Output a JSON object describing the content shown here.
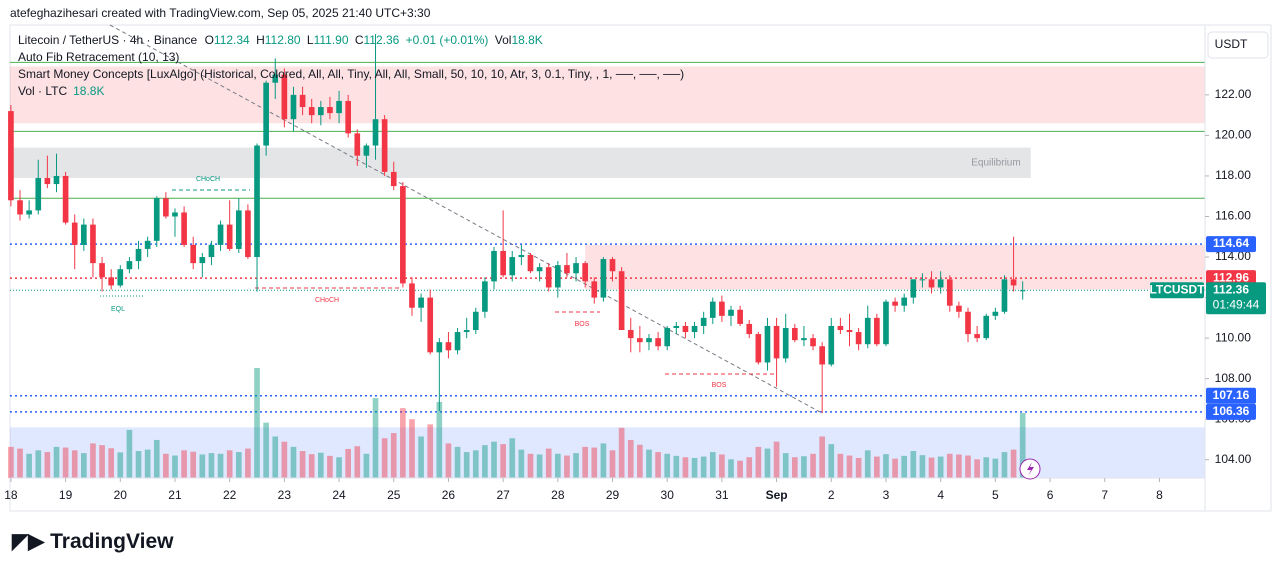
{
  "header": {
    "credit": "atefeghazihesari created with TradingView.com, Sep 05, 2025 21:40 UTC+3:30",
    "logo": "TradingView"
  },
  "chart_data": {
    "type": "candlestick",
    "symbol": "Litecoin / TetherUS · 4h · Binance",
    "ohlc": {
      "names": [
        "O",
        "H",
        "L",
        "C"
      ],
      "values": [
        112.34,
        112.8,
        111.9,
        112.36
      ],
      "value_labels": [
        "112.34",
        "112.80",
        "111.90",
        "112.36"
      ]
    },
    "change": "+0.01 (+0.01%)",
    "volume_label": "Vol",
    "volume_value": "18.8K",
    "indicators": [
      "Auto Fib Retracement (10, 13)",
      "Smart Money Concepts [LuxAlgo] (Historical, Colored, All, All, Tiny, All, All, Small, 50, 10, 10, Atr, 3, 0.1, Tiny, , 1, ──, ──, ──)"
    ],
    "volume_legend": {
      "name": "Vol · LTC",
      "value": "18.8K"
    },
    "currency": "USDT",
    "up_color": "#089981",
    "down_color": "#f23645",
    "x": [
      0,
      1,
      2,
      3,
      4,
      5,
      6,
      7,
      8,
      9,
      10,
      11,
      12,
      13,
      14,
      15,
      16,
      17,
      18,
      19,
      20,
      21,
      22,
      23,
      24,
      25,
      26,
      27,
      28,
      29,
      30,
      31,
      32,
      33,
      34,
      35,
      36,
      37,
      38,
      39,
      40,
      41,
      42,
      43,
      44,
      45,
      46,
      47,
      48,
      49,
      50,
      51,
      52,
      53,
      54,
      55,
      56,
      57,
      58,
      59,
      60,
      61,
      62,
      63,
      64,
      65,
      66,
      67,
      68,
      69,
      70,
      71,
      72,
      73,
      74,
      75,
      76,
      77,
      78,
      79,
      80,
      81,
      82,
      83,
      84,
      85,
      86,
      87,
      88,
      89,
      90,
      91,
      92,
      93,
      94,
      95,
      96,
      97,
      98,
      99,
      100,
      101,
      102,
      103,
      104,
      105,
      106,
      107,
      108,
      109,
      110,
      111
    ],
    "open": [
      121.2,
      116.8,
      116.1,
      116.3,
      117.9,
      117.6,
      118.0,
      115.7,
      114.6,
      115.6,
      113.7,
      113.0,
      112.6,
      113.4,
      113.8,
      114.4,
      114.8,
      116.9,
      116.0,
      116.2,
      114.6,
      113.7,
      114.0,
      114.6,
      115.6,
      114.4,
      116.3,
      114.0,
      119.5,
      122.6,
      123.0,
      120.8,
      122.0,
      121.4,
      121.0,
      121.4,
      121.1,
      121.7,
      120.1,
      119.0,
      119.5,
      120.8,
      118.2,
      117.5,
      112.7,
      111.5,
      112.0,
      109.3,
      109.8,
      109.4,
      110.3,
      110.4,
      111.3,
      112.8,
      114.3,
      113.1,
      114.0,
      114.1,
      113.3,
      113.5,
      112.5,
      113.6,
      113.2,
      113.7,
      112.8,
      112.0,
      113.9,
      113.3,
      110.4,
      110.0,
      109.8,
      110.0,
      109.6,
      110.5,
      110.6,
      110.3,
      110.6,
      111.0,
      111.8,
      111.1,
      111.4,
      110.7,
      110.2,
      108.8,
      110.6,
      109.0,
      110.5,
      109.9,
      110.0,
      109.6,
      108.7,
      110.6,
      110.4,
      110.3,
      109.7,
      111.0,
      109.7,
      111.8,
      111.6,
      112.0,
      112.9,
      112.9,
      112.5,
      112.9,
      111.6,
      111.3,
      110.2,
      110.0,
      111.1,
      111.3,
      112.9,
      112.34
    ],
    "high": [
      121.5,
      117.3,
      116.8,
      118.8,
      119.0,
      119.1,
      118.2,
      116.1,
      115.9,
      115.9,
      114.0,
      113.4,
      113.6,
      114.0,
      114.8,
      115.0,
      117.0,
      117.2,
      116.4,
      116.5,
      115.0,
      114.2,
      114.8,
      115.8,
      116.8,
      116.9,
      116.6,
      119.6,
      122.7,
      123.8,
      123.3,
      122.4,
      122.4,
      121.8,
      121.7,
      121.9,
      122.2,
      122.0,
      120.3,
      119.6,
      125.0,
      121.0,
      118.7,
      117.7,
      113.0,
      112.2,
      112.4,
      110.0,
      110.3,
      110.5,
      111.0,
      111.5,
      113.0,
      114.5,
      116.3,
      114.3,
      114.6,
      114.2,
      113.7,
      113.7,
      113.8,
      114.2,
      114.0,
      113.8,
      113.0,
      114.0,
      114.0,
      113.5,
      111.0,
      110.6,
      110.2,
      110.3,
      110.6,
      110.8,
      110.8,
      110.8,
      111.3,
      112.0,
      112.1,
      111.6,
      111.6,
      110.9,
      110.3,
      111.0,
      111.0,
      111.2,
      110.7,
      110.6,
      110.2,
      109.8,
      111.0,
      111.0,
      111.2,
      110.5,
      111.6,
      111.2,
      111.9,
      112.0,
      112.2,
      112.9,
      113.2,
      113.3,
      113.3,
      113.1,
      111.8,
      111.5,
      110.6,
      111.2,
      111.5,
      113.1,
      115.0,
      112.8
    ],
    "low": [
      116.5,
      115.8,
      115.9,
      116.1,
      117.4,
      117.2,
      115.6,
      113.4,
      114.3,
      113.0,
      112.3,
      112.4,
      112.5,
      113.2,
      113.4,
      114.0,
      114.5,
      115.9,
      115.0,
      114.5,
      113.4,
      113.0,
      113.6,
      114.3,
      114.3,
      114.2,
      113.9,
      112.3,
      119.0,
      121.8,
      120.4,
      120.2,
      121.0,
      120.6,
      120.5,
      120.8,
      120.6,
      119.9,
      118.5,
      118.4,
      118.8,
      118.0,
      117.3,
      112.5,
      111.1,
      110.8,
      109.2,
      106.4,
      109.0,
      109.2,
      110.0,
      110.2,
      111.0,
      112.4,
      113.0,
      112.8,
      113.6,
      113.2,
      112.8,
      112.3,
      112.0,
      113.0,
      112.8,
      112.5,
      111.7,
      111.8,
      112.8,
      110.4,
      109.3,
      109.3,
      109.4,
      109.4,
      109.4,
      110.2,
      110.0,
      110.0,
      110.2,
      110.7,
      110.8,
      110.6,
      110.6,
      110.0,
      108.7,
      108.4,
      107.6,
      108.8,
      109.8,
      109.6,
      109.4,
      106.3,
      108.6,
      110.2,
      109.6,
      109.4,
      109.5,
      109.6,
      109.6,
      111.3,
      111.3,
      111.7,
      112.5,
      112.2,
      112.2,
      111.3,
      111.0,
      109.8,
      109.8,
      109.9,
      110.9,
      111.2,
      112.3,
      111.9
    ],
    "close": [
      116.8,
      116.1,
      116.3,
      117.9,
      117.6,
      118.0,
      115.7,
      114.6,
      115.6,
      113.7,
      113.0,
      112.6,
      113.4,
      113.8,
      114.4,
      114.8,
      116.9,
      116.0,
      116.2,
      114.6,
      113.7,
      114.0,
      114.6,
      115.6,
      114.4,
      116.3,
      114.0,
      119.5,
      122.6,
      123.0,
      120.8,
      122.0,
      121.4,
      121.0,
      121.4,
      121.1,
      121.7,
      120.1,
      119.0,
      119.5,
      120.8,
      118.2,
      117.5,
      112.7,
      111.5,
      112.0,
      109.3,
      109.8,
      109.4,
      110.3,
      110.4,
      111.3,
      112.8,
      114.3,
      113.1,
      114.0,
      114.1,
      113.3,
      113.5,
      112.5,
      113.6,
      113.2,
      113.7,
      112.8,
      112.0,
      113.9,
      113.3,
      110.4,
      110.0,
      109.8,
      110.0,
      109.6,
      110.5,
      110.6,
      110.3,
      110.6,
      111.0,
      111.8,
      111.1,
      111.4,
      110.7,
      110.2,
      108.8,
      110.6,
      109.0,
      110.5,
      109.9,
      110.0,
      109.6,
      108.7,
      110.6,
      110.4,
      110.3,
      109.7,
      111.0,
      109.7,
      111.8,
      111.6,
      112.0,
      112.9,
      112.9,
      112.5,
      112.9,
      111.6,
      111.3,
      110.2,
      110.0,
      111.1,
      111.3,
      112.9,
      112.6,
      112.36
    ],
    "volume": [
      9000,
      8500,
      7000,
      8000,
      7500,
      9000,
      8800,
      8000,
      7200,
      10000,
      9500,
      8600,
      7400,
      13900,
      7800,
      8200,
      11000,
      7000,
      6500,
      8000,
      7600,
      6800,
      7200,
      7000,
      8000,
      7500,
      8500,
      31800,
      16000,
      12000,
      10500,
      9000,
      7800,
      6900,
      7300,
      6400,
      6000,
      8400,
      9200,
      7000,
      23100,
      11500,
      13000,
      20200,
      17000,
      12000,
      15500,
      22000,
      10000,
      9000,
      7500,
      8000,
      9500,
      10500,
      9800,
      11500,
      8200,
      7000,
      6800,
      8500,
      7000,
      6500,
      7200,
      9000,
      8800,
      10000,
      8000,
      14500,
      11000,
      9600,
      8200,
      7500,
      7000,
      6400,
      6000,
      5800,
      6200,
      7500,
      6800,
      5400,
      5000,
      6000,
      9000,
      8500,
      10500,
      7200,
      6000,
      6300,
      7000,
      12000,
      9800,
      7000,
      6500,
      5800,
      8000,
      6200,
      6900,
      5600,
      6400,
      7800,
      6600,
      5900,
      6200,
      7000,
      6800,
      6500,
      5400,
      6000,
      5600,
      7500,
      8200,
      18800
    ],
    "xlim": [
      -0.1,
      131
    ],
    "xticks": [
      {
        "value": 0,
        "label": "18"
      },
      {
        "value": 6,
        "label": "19"
      },
      {
        "value": 12,
        "label": "20"
      },
      {
        "value": 18,
        "label": "21"
      },
      {
        "value": 24,
        "label": "22"
      },
      {
        "value": 30,
        "label": "23"
      },
      {
        "value": 36,
        "label": "24"
      },
      {
        "value": 42,
        "label": "25"
      },
      {
        "value": 48,
        "label": "26"
      },
      {
        "value": 54,
        "label": "27"
      },
      {
        "value": 60,
        "label": "28"
      },
      {
        "value": 66,
        "label": "29"
      },
      {
        "value": 72,
        "label": "30"
      },
      {
        "value": 78,
        "label": "31"
      },
      {
        "value": 84,
        "label": "Sep"
      },
      {
        "value": 90,
        "label": "2"
      },
      {
        "value": 96,
        "label": "3"
      },
      {
        "value": 102,
        "label": "4"
      },
      {
        "value": 108,
        "label": "5"
      },
      {
        "value": 114,
        "label": "6"
      },
      {
        "value": 120,
        "label": "7"
      },
      {
        "value": 126,
        "label": "8"
      }
    ],
    "ylim": [
      103.1,
      125.2
    ],
    "yticks": [
      {
        "value": 104,
        "label": "104.00"
      },
      {
        "value": 106,
        "label": "106.00"
      },
      {
        "value": 108,
        "label": "108.00"
      },
      {
        "value": 110,
        "label": "110.00"
      },
      {
        "value": 112,
        "label": "112.00"
      },
      {
        "value": 114,
        "label": "114.00"
      },
      {
        "value": 116,
        "label": "116.00"
      },
      {
        "value": 118,
        "label": "118.00"
      },
      {
        "value": 120,
        "label": "120.00"
      },
      {
        "value": 122,
        "label": "122.00"
      }
    ],
    "zones": [
      {
        "range": [
          120.6,
          123.4
        ],
        "color": "#f23645"
      },
      {
        "range": [
          117.9,
          119.4
        ],
        "color": "#9598a1",
        "label": "Equilibrium"
      },
      {
        "range": [
          103.1,
          105.6
        ],
        "color": "#2962ff"
      },
      {
        "range": [
          112.4,
          114.6
        ],
        "color": "#f23645",
        "start": 63
      }
    ],
    "fib_levels": [
      123.6,
      120.2,
      116.9
    ],
    "price_lines": [
      {
        "value": 114.64,
        "color": "#2962ff"
      },
      {
        "value": 112.96,
        "color": "#f23645"
      },
      {
        "value": 107.16,
        "color": "#2962ff"
      },
      {
        "value": 106.36,
        "color": "#2962ff"
      }
    ],
    "last_price": {
      "symbol": "LTCUSDT",
      "value": 112.36,
      "countdown": "01:49:44"
    },
    "structure_labels": [
      "CHoCH",
      "EQL",
      "CHoCH",
      "BOS",
      "BOS"
    ]
  }
}
